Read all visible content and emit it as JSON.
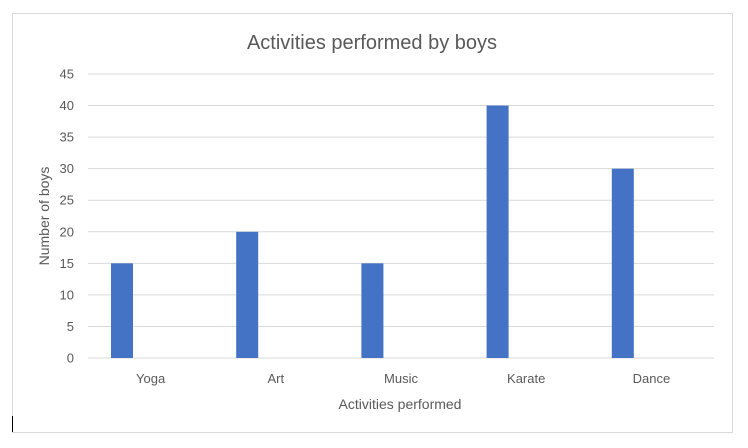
{
  "chart_data": {
    "type": "bar",
    "title": "Activities performed by boys",
    "xlabel": "Activities performed",
    "ylabel": "Number of boys",
    "categories": [
      "Yoga",
      "Art",
      "Music",
      "Karate",
      "Dance"
    ],
    "values": [
      15,
      20,
      15,
      40,
      30
    ],
    "ylim": [
      0,
      45
    ],
    "yticks": [
      "0",
      "5",
      "10",
      "15",
      "20",
      "25",
      "30",
      "35",
      "40",
      "45"
    ],
    "grid": true,
    "legend": "none",
    "colors": {
      "bar": "#4472c4",
      "grid": "#d9d9d9",
      "text": "#595959",
      "axis": "#d9d9d9"
    }
  }
}
